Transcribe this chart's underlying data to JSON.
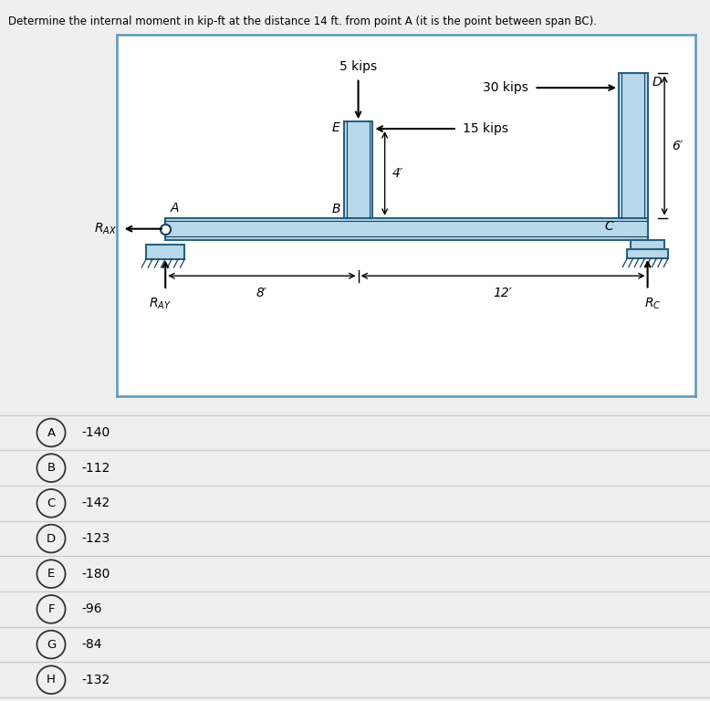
{
  "title": "Determine the internal moment in kip-ft at the distance 14 ft. from point A (it is the point between span BC).",
  "bg_color": "#efefef",
  "diagram_bg": "#ffffff",
  "beam_color": "#b8d9ea",
  "beam_border": "#2a6080",
  "support_color": "#b8d9ea",
  "options": [
    {
      "letter": "A",
      "value": "-140"
    },
    {
      "letter": "B",
      "value": "-112"
    },
    {
      "letter": "C",
      "value": "-142"
    },
    {
      "letter": "D",
      "value": "-123"
    },
    {
      "letter": "E",
      "value": "-180"
    },
    {
      "letter": "F",
      "value": "-96"
    },
    {
      "letter": "G",
      "value": "-84"
    },
    {
      "letter": "H",
      "value": "-132"
    }
  ]
}
